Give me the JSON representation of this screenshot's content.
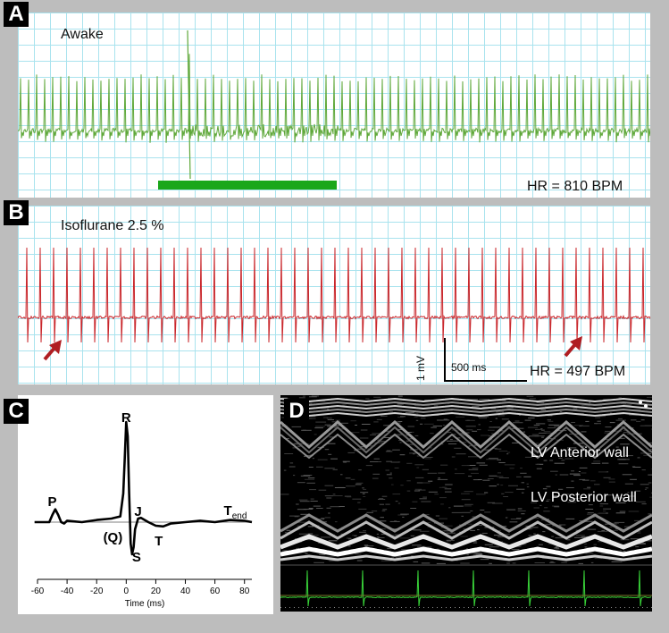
{
  "panels": {
    "a": {
      "letter": "A",
      "condition": "Awake",
      "hr_text": "HR = 810  BPM",
      "trace_color": "#5fa83a",
      "bar_color": "#1aa71a"
    },
    "b": {
      "letter": "B",
      "condition": "Isoflurane 2.5 %",
      "hr_text": "HR = 497 BPM",
      "trace_color": "#c9262b",
      "scale_time": "500 ms",
      "scale_volt": "1 mV",
      "arrow_color": "#b01e22"
    },
    "c": {
      "letter": "C",
      "wave_labels": {
        "p": "P",
        "r": "R",
        "j": "J",
        "q": "(Q)",
        "s": "S",
        "t": "T",
        "tend": "T",
        "tend_sub": "end"
      },
      "chart_data": {
        "type": "line",
        "xlabel": "Time (ms)",
        "x_ticks": [
          "-60",
          "-40",
          "-20",
          "0",
          "20",
          "40",
          "60",
          "80"
        ],
        "xlim": [
          -60,
          85
        ],
        "series": [
          {
            "x": [
              -62,
              -52,
              -50,
              -48,
              -46,
              -44,
              -42,
              -40,
              -30,
              -20,
              -10,
              -4,
              -2,
              -1,
              0,
              1,
              2,
              3,
              4,
              5,
              6,
              8,
              10,
              15,
              20,
              25,
              30,
              40,
              50,
              60,
              70,
              80,
              85
            ],
            "y": [
              0.0,
              0.0,
              0.1,
              0.18,
              0.1,
              0.0,
              -0.02,
              0.02,
              0.0,
              0.03,
              0.05,
              0.08,
              0.4,
              0.9,
              1.4,
              1.2,
              0.4,
              -0.3,
              -0.45,
              -0.35,
              -0.1,
              0.05,
              0.06,
              0.0,
              -0.05,
              -0.06,
              -0.02,
              0.0,
              0.02,
              0.0,
              0.03,
              0.02,
              0.0
            ]
          }
        ]
      }
    },
    "d": {
      "letter": "D",
      "anterior": "LV Anterior wall",
      "posterior": "LV Posterior wall",
      "ecg_color": "#38d238"
    }
  }
}
